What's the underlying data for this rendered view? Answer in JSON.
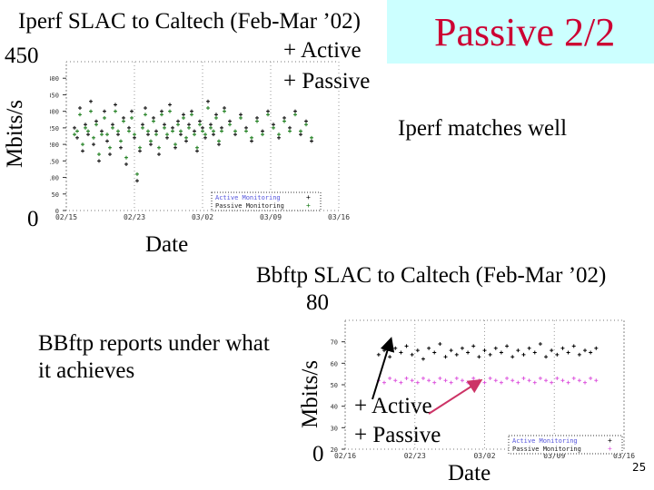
{
  "slide": {
    "title": "Passive 2/2",
    "page_number": "25",
    "accent_color": "#cc0033",
    "title_bg": "#ccffff",
    "note_top": "Iperf matches well",
    "note_bottom": "BBftp reports under what it achieves"
  },
  "chart_data": [
    {
      "type": "scatter",
      "title": "Iperf SLAC to Caltech (Feb-Mar ’02)",
      "xlabel": "Date",
      "ylabel": "Mbits/s",
      "y_max_label": "450",
      "y_min_label": "0",
      "ylim": [
        0,
        450
      ],
      "yticks": [
        "400",
        "350",
        "300",
        "250",
        "200",
        "150",
        "100",
        "50",
        "0"
      ],
      "xticks": [
        "02/15",
        "02/23",
        "03/02",
        "03/09",
        "03/16"
      ],
      "legend_overlay": [
        "+ Active",
        "+ Passive"
      ],
      "legend_box": [
        "Active Monitoring",
        "Passive Monitoring"
      ],
      "series": [
        {
          "name": "Active",
          "color": "#000000",
          "points": [
            [
              3,
              250
            ],
            [
              4,
              220
            ],
            [
              5,
              310
            ],
            [
              6,
              180
            ],
            [
              7,
              260
            ],
            [
              8,
              230
            ],
            [
              9,
              330
            ],
            [
              10,
              200
            ],
            [
              11,
              270
            ],
            [
              12,
              150
            ],
            [
              13,
              240
            ],
            [
              14,
              300
            ],
            [
              15,
              210
            ],
            [
              16,
              170
            ],
            [
              17,
              260
            ],
            [
              18,
              320
            ],
            [
              19,
              230
            ],
            [
              20,
              190
            ],
            [
              21,
              280
            ],
            [
              22,
              140
            ],
            [
              23,
              250
            ],
            [
              24,
              300
            ],
            [
              25,
              220
            ],
            [
              26,
              90
            ],
            [
              27,
              180
            ],
            [
              28,
              260
            ],
            [
              29,
              310
            ],
            [
              30,
              230
            ],
            [
              31,
              200
            ],
            [
              32,
              280
            ],
            [
              33,
              240
            ],
            [
              34,
              170
            ],
            [
              35,
              300
            ],
            [
              36,
              260
            ],
            [
              37,
              220
            ],
            [
              38,
              320
            ],
            [
              39,
              250
            ],
            [
              40,
              190
            ],
            [
              41,
              270
            ],
            [
              42,
              230
            ],
            [
              43,
              290
            ],
            [
              44,
              210
            ],
            [
              45,
              260
            ],
            [
              46,
              300
            ],
            [
              47,
              240
            ],
            [
              48,
              180
            ],
            [
              49,
              270
            ],
            [
              50,
              250
            ],
            [
              51,
              220
            ],
            [
              52,
              330
            ],
            [
              53,
              260
            ],
            [
              54,
              230
            ],
            [
              55,
              290
            ],
            [
              56,
              200
            ],
            [
              57,
              250
            ],
            [
              58,
              310
            ],
            [
              60,
              270
            ],
            [
              62,
              230
            ],
            [
              64,
              290
            ],
            [
              66,
              250
            ],
            [
              68,
              210
            ],
            [
              70,
              280
            ],
            [
              72,
              240
            ],
            [
              74,
              300
            ],
            [
              76,
              260
            ],
            [
              78,
              220
            ],
            [
              80,
              280
            ],
            [
              82,
              250
            ],
            [
              84,
              300
            ],
            [
              86,
              230
            ],
            [
              88,
              270
            ],
            [
              90,
              210
            ]
          ]
        },
        {
          "name": "Passive",
          "color": "#117711",
          "points": [
            [
              3,
              230
            ],
            [
              4,
              240
            ],
            [
              5,
              290
            ],
            [
              6,
              200
            ],
            [
              7,
              250
            ],
            [
              8,
              240
            ],
            [
              9,
              300
            ],
            [
              10,
              220
            ],
            [
              11,
              260
            ],
            [
              12,
              170
            ],
            [
              13,
              230
            ],
            [
              14,
              280
            ],
            [
              15,
              230
            ],
            [
              16,
              190
            ],
            [
              17,
              250
            ],
            [
              18,
              300
            ],
            [
              19,
              240
            ],
            [
              20,
              210
            ],
            [
              21,
              270
            ],
            [
              22,
              160
            ],
            [
              23,
              240
            ],
            [
              24,
              280
            ],
            [
              25,
              230
            ],
            [
              26,
              110
            ],
            [
              27,
              190
            ],
            [
              28,
              250
            ],
            [
              29,
              290
            ],
            [
              30,
              240
            ],
            [
              31,
              210
            ],
            [
              32,
              270
            ],
            [
              33,
              230
            ],
            [
              34,
              190
            ],
            [
              35,
              290
            ],
            [
              36,
              250
            ],
            [
              37,
              230
            ],
            [
              38,
              300
            ],
            [
              39,
              240
            ],
            [
              40,
              200
            ],
            [
              41,
              260
            ],
            [
              42,
              240
            ],
            [
              43,
              280
            ],
            [
              44,
              220
            ],
            [
              45,
              250
            ],
            [
              46,
              290
            ],
            [
              47,
              230
            ],
            [
              48,
              190
            ],
            [
              49,
              260
            ],
            [
              50,
              240
            ],
            [
              51,
              230
            ],
            [
              52,
              310
            ],
            [
              53,
              250
            ],
            [
              54,
              240
            ],
            [
              55,
              280
            ],
            [
              56,
              210
            ],
            [
              57,
              240
            ],
            [
              58,
              300
            ],
            [
              60,
              260
            ],
            [
              62,
              240
            ],
            [
              64,
              280
            ],
            [
              66,
              240
            ],
            [
              68,
              220
            ],
            [
              70,
              270
            ],
            [
              72,
              230
            ],
            [
              74,
              290
            ],
            [
              76,
              250
            ],
            [
              78,
              230
            ],
            [
              80,
              270
            ],
            [
              82,
              240
            ],
            [
              84,
              290
            ],
            [
              86,
              240
            ],
            [
              88,
              260
            ],
            [
              90,
              220
            ]
          ]
        }
      ]
    },
    {
      "type": "scatter",
      "title": "Bbftp SLAC to Caltech (Feb-Mar ’02)",
      "xlabel": "Date",
      "ylabel": "Mbits/s",
      "y_max_label": "80",
      "y_min_label": "0",
      "ylim": [
        20,
        80
      ],
      "yticks": [
        "70",
        "60",
        "50",
        "40",
        "30",
        "20"
      ],
      "xticks": [
        "02/16",
        "02/23",
        "03/02",
        "03/09",
        "03/16"
      ],
      "legend_overlay": [
        "+ Active",
        "+ Passive"
      ],
      "legend_box": [
        "Active Monitoring",
        "Passive Monitoring"
      ],
      "series": [
        {
          "name": "Active",
          "color": "#000000",
          "points": [
            [
              12,
              64
            ],
            [
              14,
              66
            ],
            [
              16,
              63
            ],
            [
              18,
              67
            ],
            [
              20,
              65
            ],
            [
              22,
              68
            ],
            [
              24,
              64
            ],
            [
              26,
              66
            ],
            [
              28,
              62
            ],
            [
              30,
              67
            ],
            [
              32,
              65
            ],
            [
              34,
              69
            ],
            [
              36,
              63
            ],
            [
              38,
              66
            ],
            [
              40,
              64
            ],
            [
              42,
              67
            ],
            [
              44,
              65
            ],
            [
              46,
              68
            ],
            [
              48,
              63
            ],
            [
              50,
              66
            ],
            [
              52,
              64
            ],
            [
              54,
              67
            ],
            [
              56,
              65
            ],
            [
              58,
              68
            ],
            [
              60,
              63
            ],
            [
              62,
              66
            ],
            [
              64,
              64
            ],
            [
              66,
              67
            ],
            [
              68,
              65
            ],
            [
              70,
              69
            ],
            [
              72,
              63
            ],
            [
              74,
              66
            ],
            [
              76,
              64
            ],
            [
              78,
              67
            ],
            [
              80,
              65
            ],
            [
              82,
              68
            ],
            [
              84,
              64
            ],
            [
              86,
              66
            ],
            [
              88,
              65
            ],
            [
              90,
              67
            ]
          ]
        },
        {
          "name": "Passive",
          "color": "#dd55dd",
          "points": [
            [
              12,
              52
            ],
            [
              14,
              51
            ],
            [
              16,
              53
            ],
            [
              18,
              52
            ],
            [
              20,
              51
            ],
            [
              22,
              53
            ],
            [
              24,
              52
            ],
            [
              26,
              51
            ],
            [
              28,
              53
            ],
            [
              30,
              52
            ],
            [
              32,
              51
            ],
            [
              34,
              53
            ],
            [
              36,
              52
            ],
            [
              38,
              51
            ],
            [
              40,
              53
            ],
            [
              42,
              52
            ],
            [
              44,
              51
            ],
            [
              46,
              53
            ],
            [
              48,
              52
            ],
            [
              50,
              51
            ],
            [
              52,
              53
            ],
            [
              54,
              52
            ],
            [
              56,
              51
            ],
            [
              58,
              53
            ],
            [
              60,
              52
            ],
            [
              62,
              51
            ],
            [
              64,
              53
            ],
            [
              66,
              52
            ],
            [
              68,
              51
            ],
            [
              70,
              53
            ],
            [
              72,
              52
            ],
            [
              74,
              51
            ],
            [
              76,
              53
            ],
            [
              78,
              52
            ],
            [
              80,
              51
            ],
            [
              82,
              53
            ],
            [
              84,
              52
            ],
            [
              86,
              51
            ],
            [
              88,
              53
            ],
            [
              90,
              52
            ]
          ]
        }
      ]
    }
  ]
}
